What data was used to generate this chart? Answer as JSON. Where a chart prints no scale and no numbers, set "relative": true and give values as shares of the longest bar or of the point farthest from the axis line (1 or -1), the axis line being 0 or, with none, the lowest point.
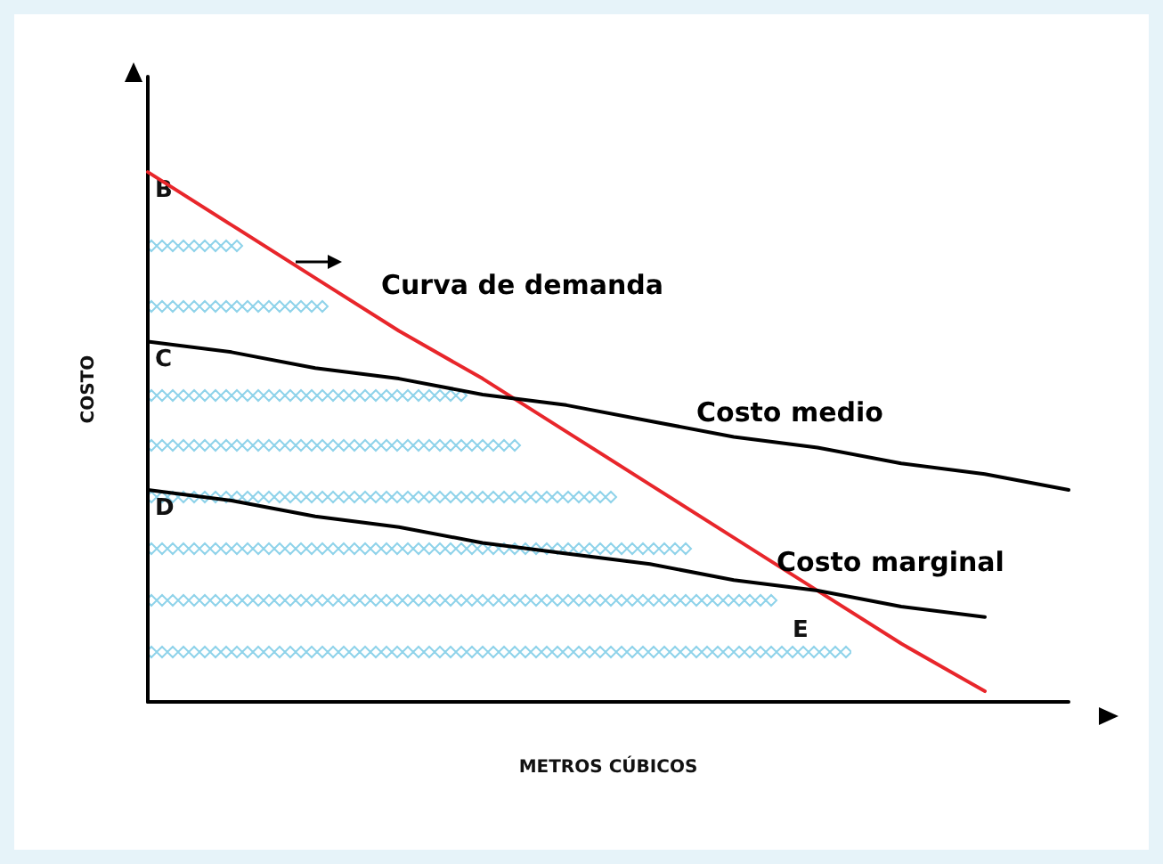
{
  "chart_data": {
    "type": "line",
    "relative": true,
    "xlabel": "METROS CÚBICOS",
    "ylabel": "COSTO",
    "categories": [
      null,
      null,
      null,
      null,
      null,
      null,
      null,
      null,
      null,
      null,
      null,
      null
    ],
    "series": [
      {
        "name": "Curva de demanda",
        "color": "#e8262b",
        "values": [
          1,
          0.9,
          0.8,
          0.7,
          0.61,
          0.51,
          0.41,
          0.31,
          0.21,
          0.11,
          0.02,
          null
        ]
      },
      {
        "name": "Costo medio",
        "color": "#000000",
        "values": [
          0.68,
          0.66,
          0.63,
          0.61,
          0.58,
          0.56,
          0.53,
          0.5,
          0.48,
          0.45,
          0.43,
          0.4
        ]
      },
      {
        "name": "Costo marginal",
        "color": "#000000",
        "values": [
          0.4,
          0.38,
          0.35,
          0.33,
          0.3,
          0.28,
          0.26,
          0.23,
          0.21,
          0.18,
          0.16,
          null
        ]
      }
    ],
    "annotations": [
      "B",
      "C",
      "D",
      "E"
    ],
    "grid": false,
    "legend": false,
    "marker": "none",
    "line_style": "solid"
  }
}
